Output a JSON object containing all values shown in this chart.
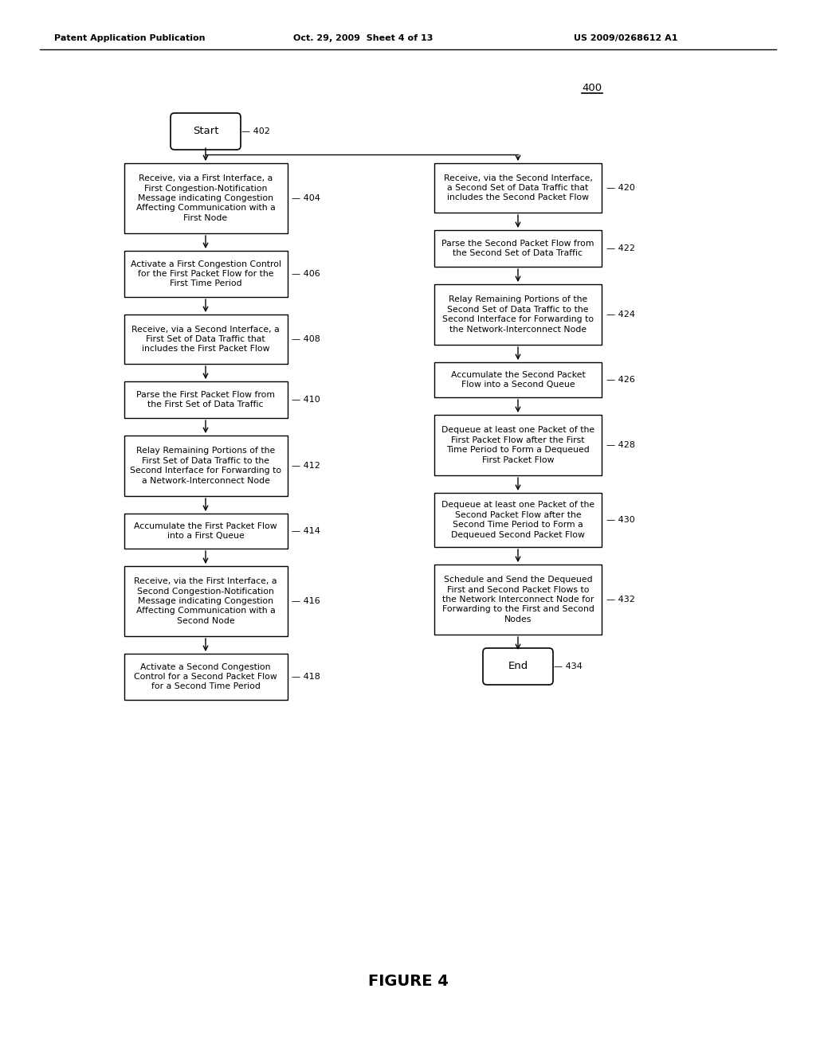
{
  "title_left": "Patent Application Publication",
  "title_mid": "Oct. 29, 2009  Sheet 4 of 13",
  "title_right": "US 2009/0268612 A1",
  "figure_label": "FIGURE 4",
  "diagram_number": "400",
  "bg_color": "#ffffff",
  "left_column": {
    "start_label": "Start",
    "start_id": "402",
    "boxes": [
      {
        "id": "404",
        "text": "Receive, via a First Interface, a\nFirst Congestion-Notification\nMessage indicating Congestion\nAffecting Communication with a\nFirst Node"
      },
      {
        "id": "406",
        "text": "Activate a First Congestion Control\nfor the First Packet Flow for the\nFirst Time Period"
      },
      {
        "id": "408",
        "text": "Receive, via a Second Interface, a\nFirst Set of Data Traffic that\nincludes the First Packet Flow"
      },
      {
        "id": "410",
        "text": "Parse the First Packet Flow from\nthe First Set of Data Traffic"
      },
      {
        "id": "412",
        "text": "Relay Remaining Portions of the\nFirst Set of Data Traffic to the\nSecond Interface for Forwarding to\na Network-Interconnect Node"
      },
      {
        "id": "414",
        "text": "Accumulate the First Packet Flow\ninto a First Queue"
      },
      {
        "id": "416",
        "text": "Receive, via the First Interface, a\nSecond Congestion-Notification\nMessage indicating Congestion\nAffecting Communication with a\nSecond Node"
      },
      {
        "id": "418",
        "text": "Activate a Second Congestion\nControl for a Second Packet Flow\nfor a Second Time Period"
      }
    ]
  },
  "right_column": {
    "boxes": [
      {
        "id": "420",
        "text": "Receive, via the Second Interface,\na Second Set of Data Traffic that\nincludes the Second Packet Flow"
      },
      {
        "id": "422",
        "text": "Parse the Second Packet Flow from\nthe Second Set of Data Traffic"
      },
      {
        "id": "424",
        "text": "Relay Remaining Portions of the\nSecond Set of Data Traffic to the\nSecond Interface for Forwarding to\nthe Network-Interconnect Node"
      },
      {
        "id": "426",
        "text": "Accumulate the Second Packet\nFlow into a Second Queue"
      },
      {
        "id": "428",
        "text": "Dequeue at least one Packet of the\nFirst Packet Flow after the First\nTime Period to Form a Dequeued\nFirst Packet Flow"
      },
      {
        "id": "430",
        "text": "Dequeue at least one Packet of the\nSecond Packet Flow after the\nSecond Time Period to Form a\nDequeued Second Packet Flow"
      },
      {
        "id": "432",
        "text": "Schedule and Send the Dequeued\nFirst and Second Packet Flows to\nthe Network Interconnect Node for\nForwarding to the First and Second\nNodes"
      }
    ],
    "end_label": "End",
    "end_id": "434"
  }
}
